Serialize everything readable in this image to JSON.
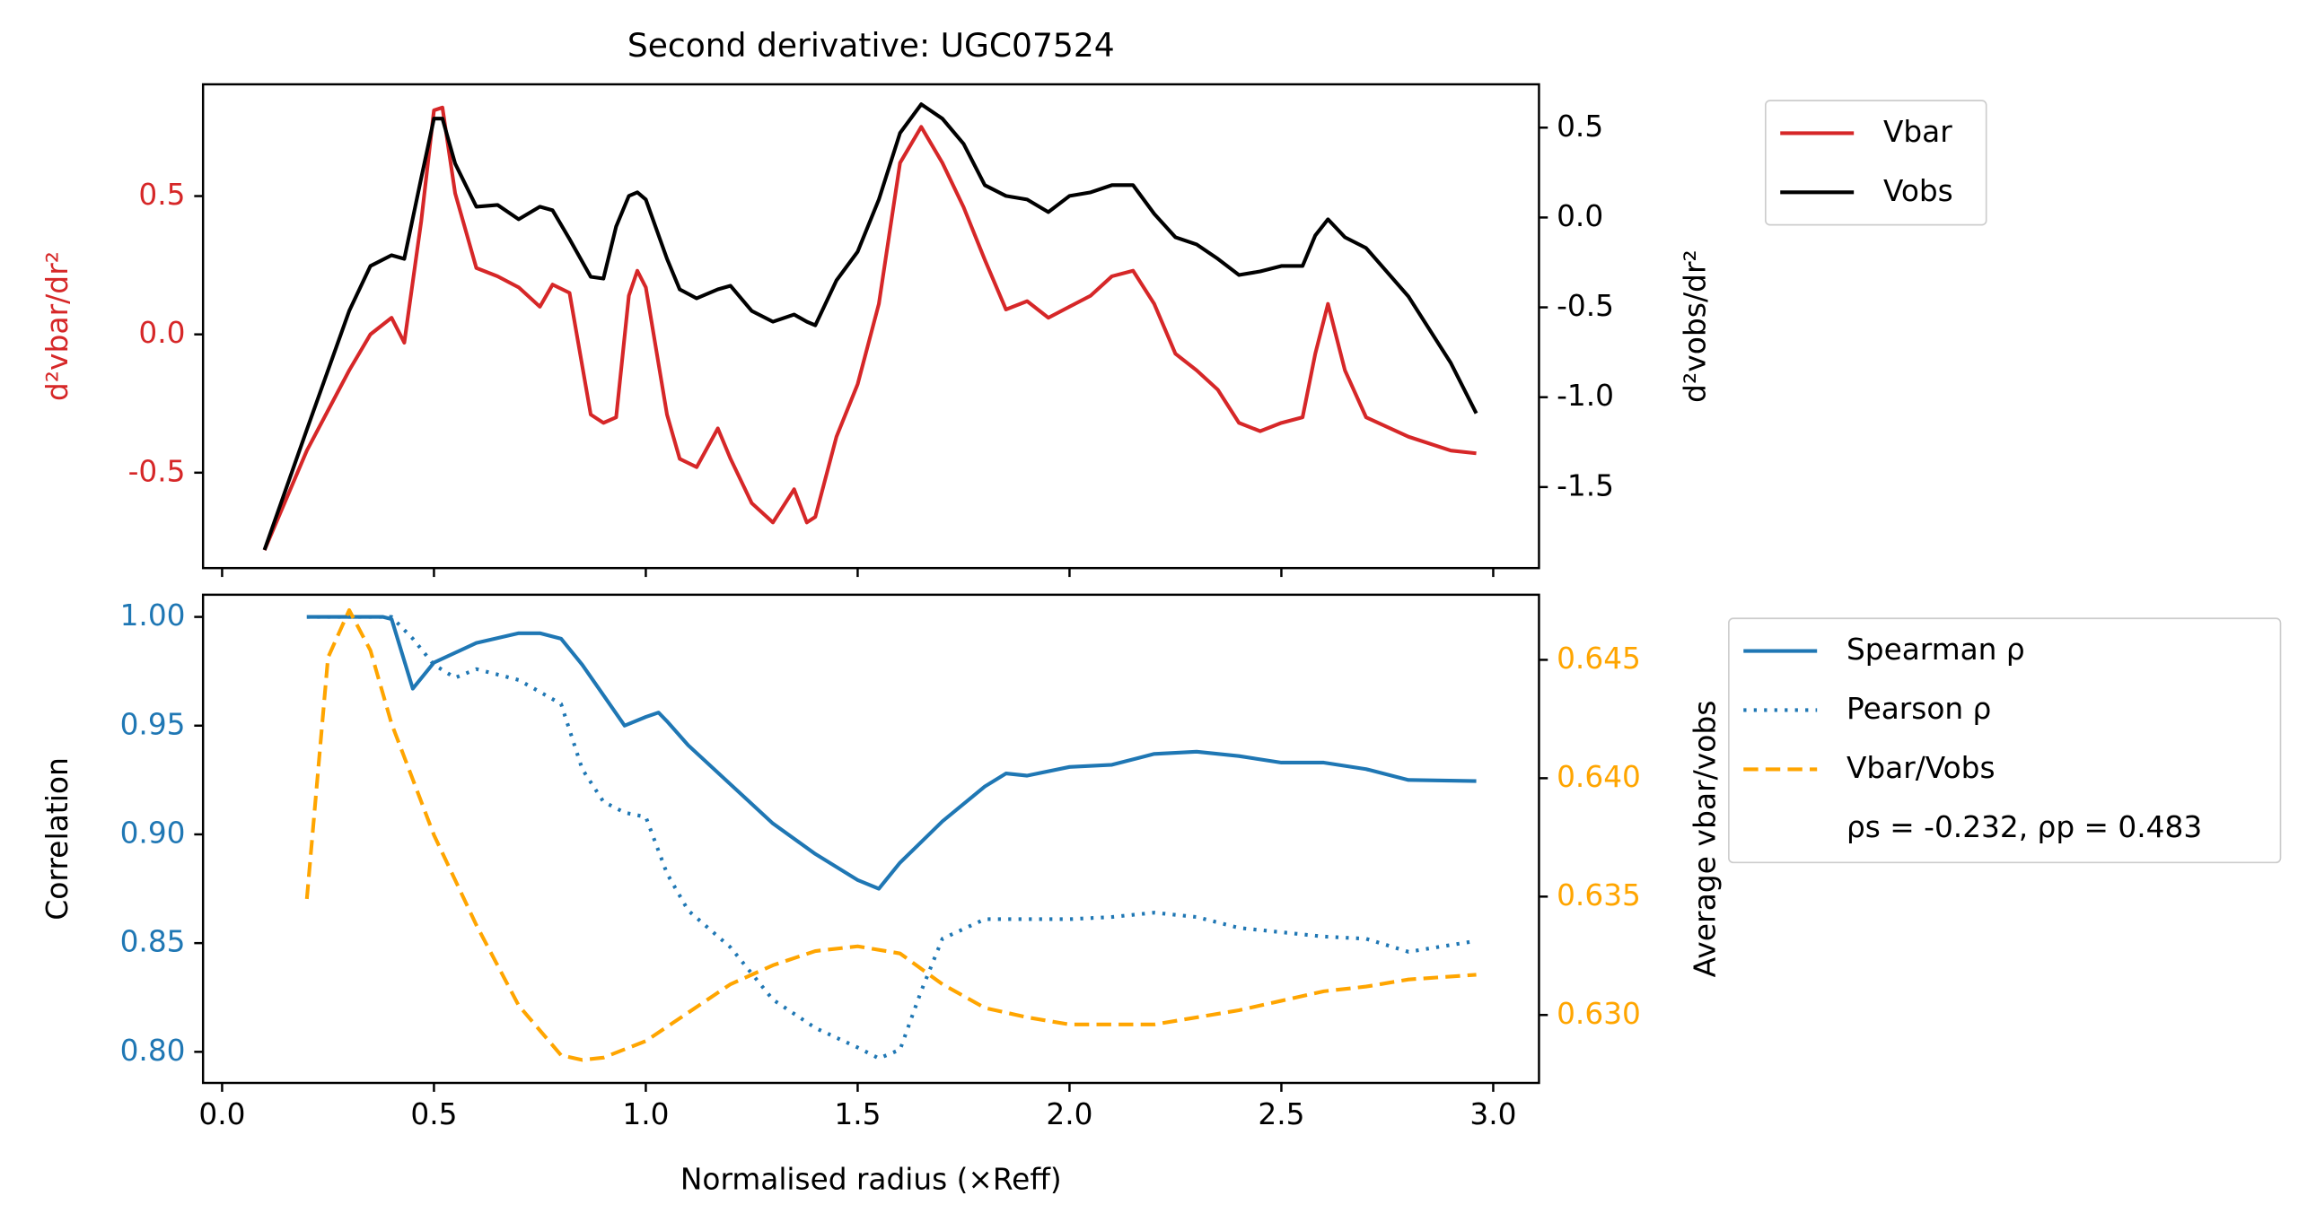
{
  "chart_data": [
    {
      "type": "line",
      "title": "Second derivative: UGC07524",
      "ylabel": "d²vbar/dr²",
      "y2label": "d²vobs/dr²",
      "ylabel_color": "#d62728",
      "ytick_color": "#d62728",
      "y2label_color": "#000000",
      "y2tick_color": "#000000",
      "xlim": [
        -0.045,
        3.108
      ],
      "ylim": [
        -0.845,
        0.904
      ],
      "yticks": [
        -0.5,
        {
          "value": 0,
          "label": "0.0"
        },
        0.5
      ],
      "y2lim": [
        -1.951,
        0.741
      ],
      "y2ticks": [
        -1.5,
        {
          "value": -1,
          "label": "-1.0"
        },
        -0.5,
        {
          "value": 0,
          "label": "0.0"
        },
        0.5
      ],
      "x": [
        0.1,
        0.2,
        0.3,
        0.35,
        0.4,
        0.43,
        0.47,
        0.5,
        0.52,
        0.55,
        0.6,
        0.65,
        0.7,
        0.75,
        0.78,
        0.82,
        0.87,
        0.9,
        0.93,
        0.96,
        0.98,
        1.0,
        1.05,
        1.08,
        1.12,
        1.17,
        1.2,
        1.25,
        1.3,
        1.35,
        1.38,
        1.4,
        1.45,
        1.5,
        1.55,
        1.6,
        1.65,
        1.7,
        1.75,
        1.8,
        1.85,
        1.9,
        1.95,
        2.0,
        2.05,
        2.1,
        2.15,
        2.2,
        2.25,
        2.3,
        2.35,
        2.4,
        2.45,
        2.5,
        2.55,
        2.58,
        2.61,
        2.65,
        2.7,
        2.8,
        2.9,
        2.96
      ],
      "series": [
        {
          "name": "Vbar",
          "color": "#d62728",
          "linestyle": "solid",
          "values": [
            -0.78,
            -0.42,
            -0.13,
            0.0,
            0.06,
            -0.03,
            0.41,
            0.81,
            0.82,
            0.51,
            0.24,
            0.21,
            0.17,
            0.1,
            0.18,
            0.15,
            -0.29,
            -0.32,
            -0.3,
            0.14,
            0.23,
            0.17,
            -0.29,
            -0.45,
            -0.48,
            -0.34,
            -0.45,
            -0.61,
            -0.68,
            -0.56,
            -0.68,
            -0.66,
            -0.37,
            -0.18,
            0.11,
            0.62,
            0.75,
            0.62,
            0.46,
            0.27,
            0.09,
            0.12,
            0.06,
            0.1,
            0.14,
            0.21,
            0.23,
            0.11,
            -0.07,
            -0.13,
            -0.2,
            -0.32,
            -0.35,
            -0.32,
            -0.3,
            -0.07,
            0.11,
            -0.13,
            -0.3,
            -0.37,
            -0.42,
            -0.43
          ]
        },
        {
          "name": "Vobs",
          "color": "#000000",
          "linestyle": "solid",
          "axis": "y2",
          "values": [
            -1.85,
            -1.18,
            -0.52,
            -0.27,
            -0.21,
            -0.23,
            0.22,
            0.55,
            0.55,
            0.3,
            0.06,
            0.07,
            -0.01,
            0.06,
            0.04,
            -0.12,
            -0.33,
            -0.34,
            -0.05,
            0.12,
            0.14,
            0.1,
            -0.23,
            -0.4,
            -0.45,
            -0.4,
            -0.38,
            -0.52,
            -0.58,
            -0.54,
            -0.58,
            -0.6,
            -0.35,
            -0.19,
            0.1,
            0.47,
            0.63,
            0.55,
            0.41,
            0.18,
            0.12,
            0.1,
            0.03,
            0.12,
            0.14,
            0.18,
            0.18,
            0.02,
            -0.11,
            -0.15,
            -0.23,
            -0.32,
            -0.3,
            -0.27,
            -0.27,
            -0.1,
            -0.01,
            -0.11,
            -0.17,
            -0.44,
            -0.81,
            -1.09
          ]
        }
      ]
    },
    {
      "type": "line",
      "xlabel": "Normalised radius (×Reff)",
      "ylabel": "Correlation",
      "y2label": "Average vbar/vobs",
      "ylabel_color": "#000000",
      "ytick_color": "#1f77b4",
      "y2label_color": "#000000",
      "y2tick_color": "#ffa500",
      "xlim": [
        -0.045,
        3.108
      ],
      "xticks": [
        {
          "value": 0,
          "label": "0.0"
        },
        0.5,
        {
          "value": 1,
          "label": "1.0"
        },
        1.5,
        {
          "value": 2,
          "label": "2.0"
        },
        2.5,
        {
          "value": 3,
          "label": "3.0"
        }
      ],
      "ylim": [
        0.7857,
        1.0102
      ],
      "yticks": [
        {
          "value": 0.8,
          "label": "0.80"
        },
        0.85,
        {
          "value": 0.9,
          "label": "0.90"
        },
        0.95,
        {
          "value": 1,
          "label": "1.00"
        }
      ],
      "y2lim": [
        0.62713,
        0.64775
      ],
      "y2ticks": [
        {
          "value": 0.63,
          "label": "0.630"
        },
        0.635,
        {
          "value": 0.64,
          "label": "0.640"
        },
        0.645
      ],
      "legend_note": "ρs = -0.232, ρp = 0.483",
      "series": [
        {
          "name": "Spearman ρ",
          "color": "#1f77b4",
          "linestyle": "solid",
          "x": [
            0.2,
            0.38,
            0.4,
            0.45,
            0.5,
            0.6,
            0.7,
            0.75,
            0.8,
            0.85,
            0.9,
            0.95,
            1.0,
            1.03,
            1.05,
            1.1,
            1.2,
            1.3,
            1.4,
            1.5,
            1.55,
            1.6,
            1.7,
            1.8,
            1.85,
            1.9,
            2.0,
            2.1,
            2.2,
            2.3,
            2.4,
            2.5,
            2.6,
            2.7,
            2.8,
            2.96
          ],
          "values": [
            1.0,
            1.0,
            0.999,
            0.967,
            0.979,
            0.988,
            0.9925,
            0.9925,
            0.99,
            0.978,
            0.964,
            0.95,
            0.954,
            0.956,
            0.952,
            0.941,
            0.923,
            0.905,
            0.891,
            0.879,
            0.875,
            0.887,
            0.906,
            0.922,
            0.928,
            0.927,
            0.931,
            0.932,
            0.937,
            0.938,
            0.936,
            0.933,
            0.933,
            0.93,
            0.925,
            0.9245
          ]
        },
        {
          "name": "Pearson ρ",
          "color": "#1f77b4",
          "linestyle": "dotted",
          "x": [
            0.2,
            0.4,
            0.45,
            0.5,
            0.55,
            0.6,
            0.7,
            0.8,
            0.85,
            0.9,
            0.95,
            1.0,
            1.05,
            1.1,
            1.2,
            1.3,
            1.4,
            1.5,
            1.55,
            1.6,
            1.65,
            1.7,
            1.8,
            1.9,
            2.0,
            2.1,
            2.2,
            2.3,
            2.4,
            2.5,
            2.6,
            2.7,
            2.8,
            2.96
          ],
          "values": [
            1.0,
            1.0,
            0.99,
            0.978,
            0.972,
            0.976,
            0.971,
            0.96,
            0.93,
            0.915,
            0.91,
            0.908,
            0.882,
            0.865,
            0.848,
            0.824,
            0.811,
            0.802,
            0.797,
            0.801,
            0.828,
            0.852,
            0.861,
            0.861,
            0.861,
            0.862,
            0.864,
            0.862,
            0.857,
            0.855,
            0.853,
            0.852,
            0.846,
            0.851
          ]
        },
        {
          "name": "Vbar/Vobs",
          "color": "#ffa500",
          "linestyle": "dashed",
          "axis": "y2",
          "x": [
            0.2,
            0.25,
            0.3,
            0.35,
            0.4,
            0.5,
            0.6,
            0.7,
            0.8,
            0.85,
            0.9,
            1.0,
            1.1,
            1.2,
            1.3,
            1.4,
            1.5,
            1.6,
            1.7,
            1.8,
            1.9,
            2.0,
            2.2,
            2.3,
            2.4,
            2.5,
            2.6,
            2.7,
            2.8,
            2.96
          ],
          "values": [
            0.6349,
            0.6451,
            0.6471,
            0.6454,
            0.6423,
            0.6376,
            0.6338,
            0.6304,
            0.6283,
            0.6281,
            0.6282,
            0.6289,
            0.6301,
            0.6313,
            0.6321,
            0.6327,
            0.6329,
            0.6326,
            0.6313,
            0.6303,
            0.6299,
            0.6296,
            0.6296,
            0.6299,
            0.6302,
            0.6306,
            0.631,
            0.6312,
            0.6315,
            0.6317
          ]
        }
      ]
    }
  ]
}
